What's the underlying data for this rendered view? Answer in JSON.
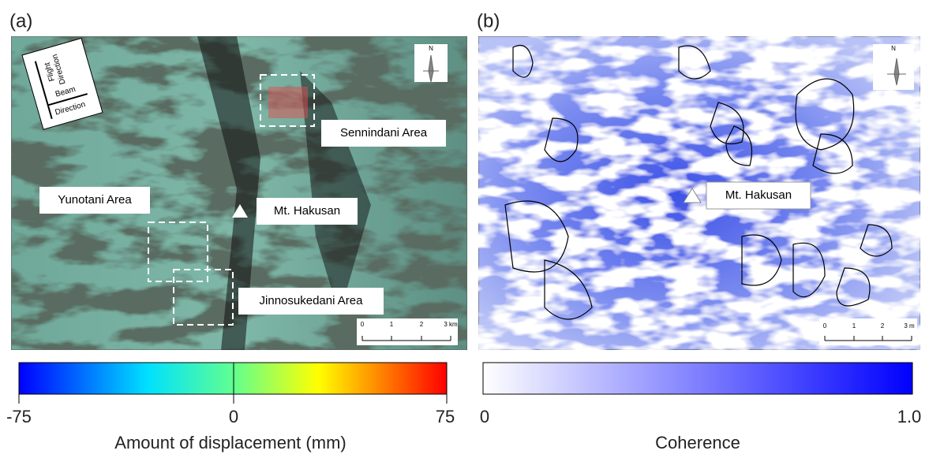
{
  "panel_a": {
    "label": "(a)",
    "flight_direction": [
      "Flight",
      "Direction"
    ],
    "beam_direction": [
      "Beam",
      "Direction"
    ],
    "areas": [
      "Sennindani Area",
      "Yunotani Area",
      "Mt. Hakusan",
      "Jinnosukedani Area"
    ],
    "north": "N",
    "scale_ticks": [
      "0",
      "1",
      "2",
      "3 km"
    ],
    "colorbar": {
      "ticks": [
        "-75",
        "0",
        "75"
      ],
      "title": "Amount of displacement (mm)"
    }
  },
  "panel_b": {
    "label": "(b)",
    "areas": [
      "Mt. Hakusan"
    ],
    "north": "N",
    "scale_ticks": [
      "0",
      "1",
      "2",
      "3 m"
    ],
    "colorbar": {
      "ticks": [
        "0",
        "1.0"
      ],
      "title": "Coherence"
    }
  }
}
